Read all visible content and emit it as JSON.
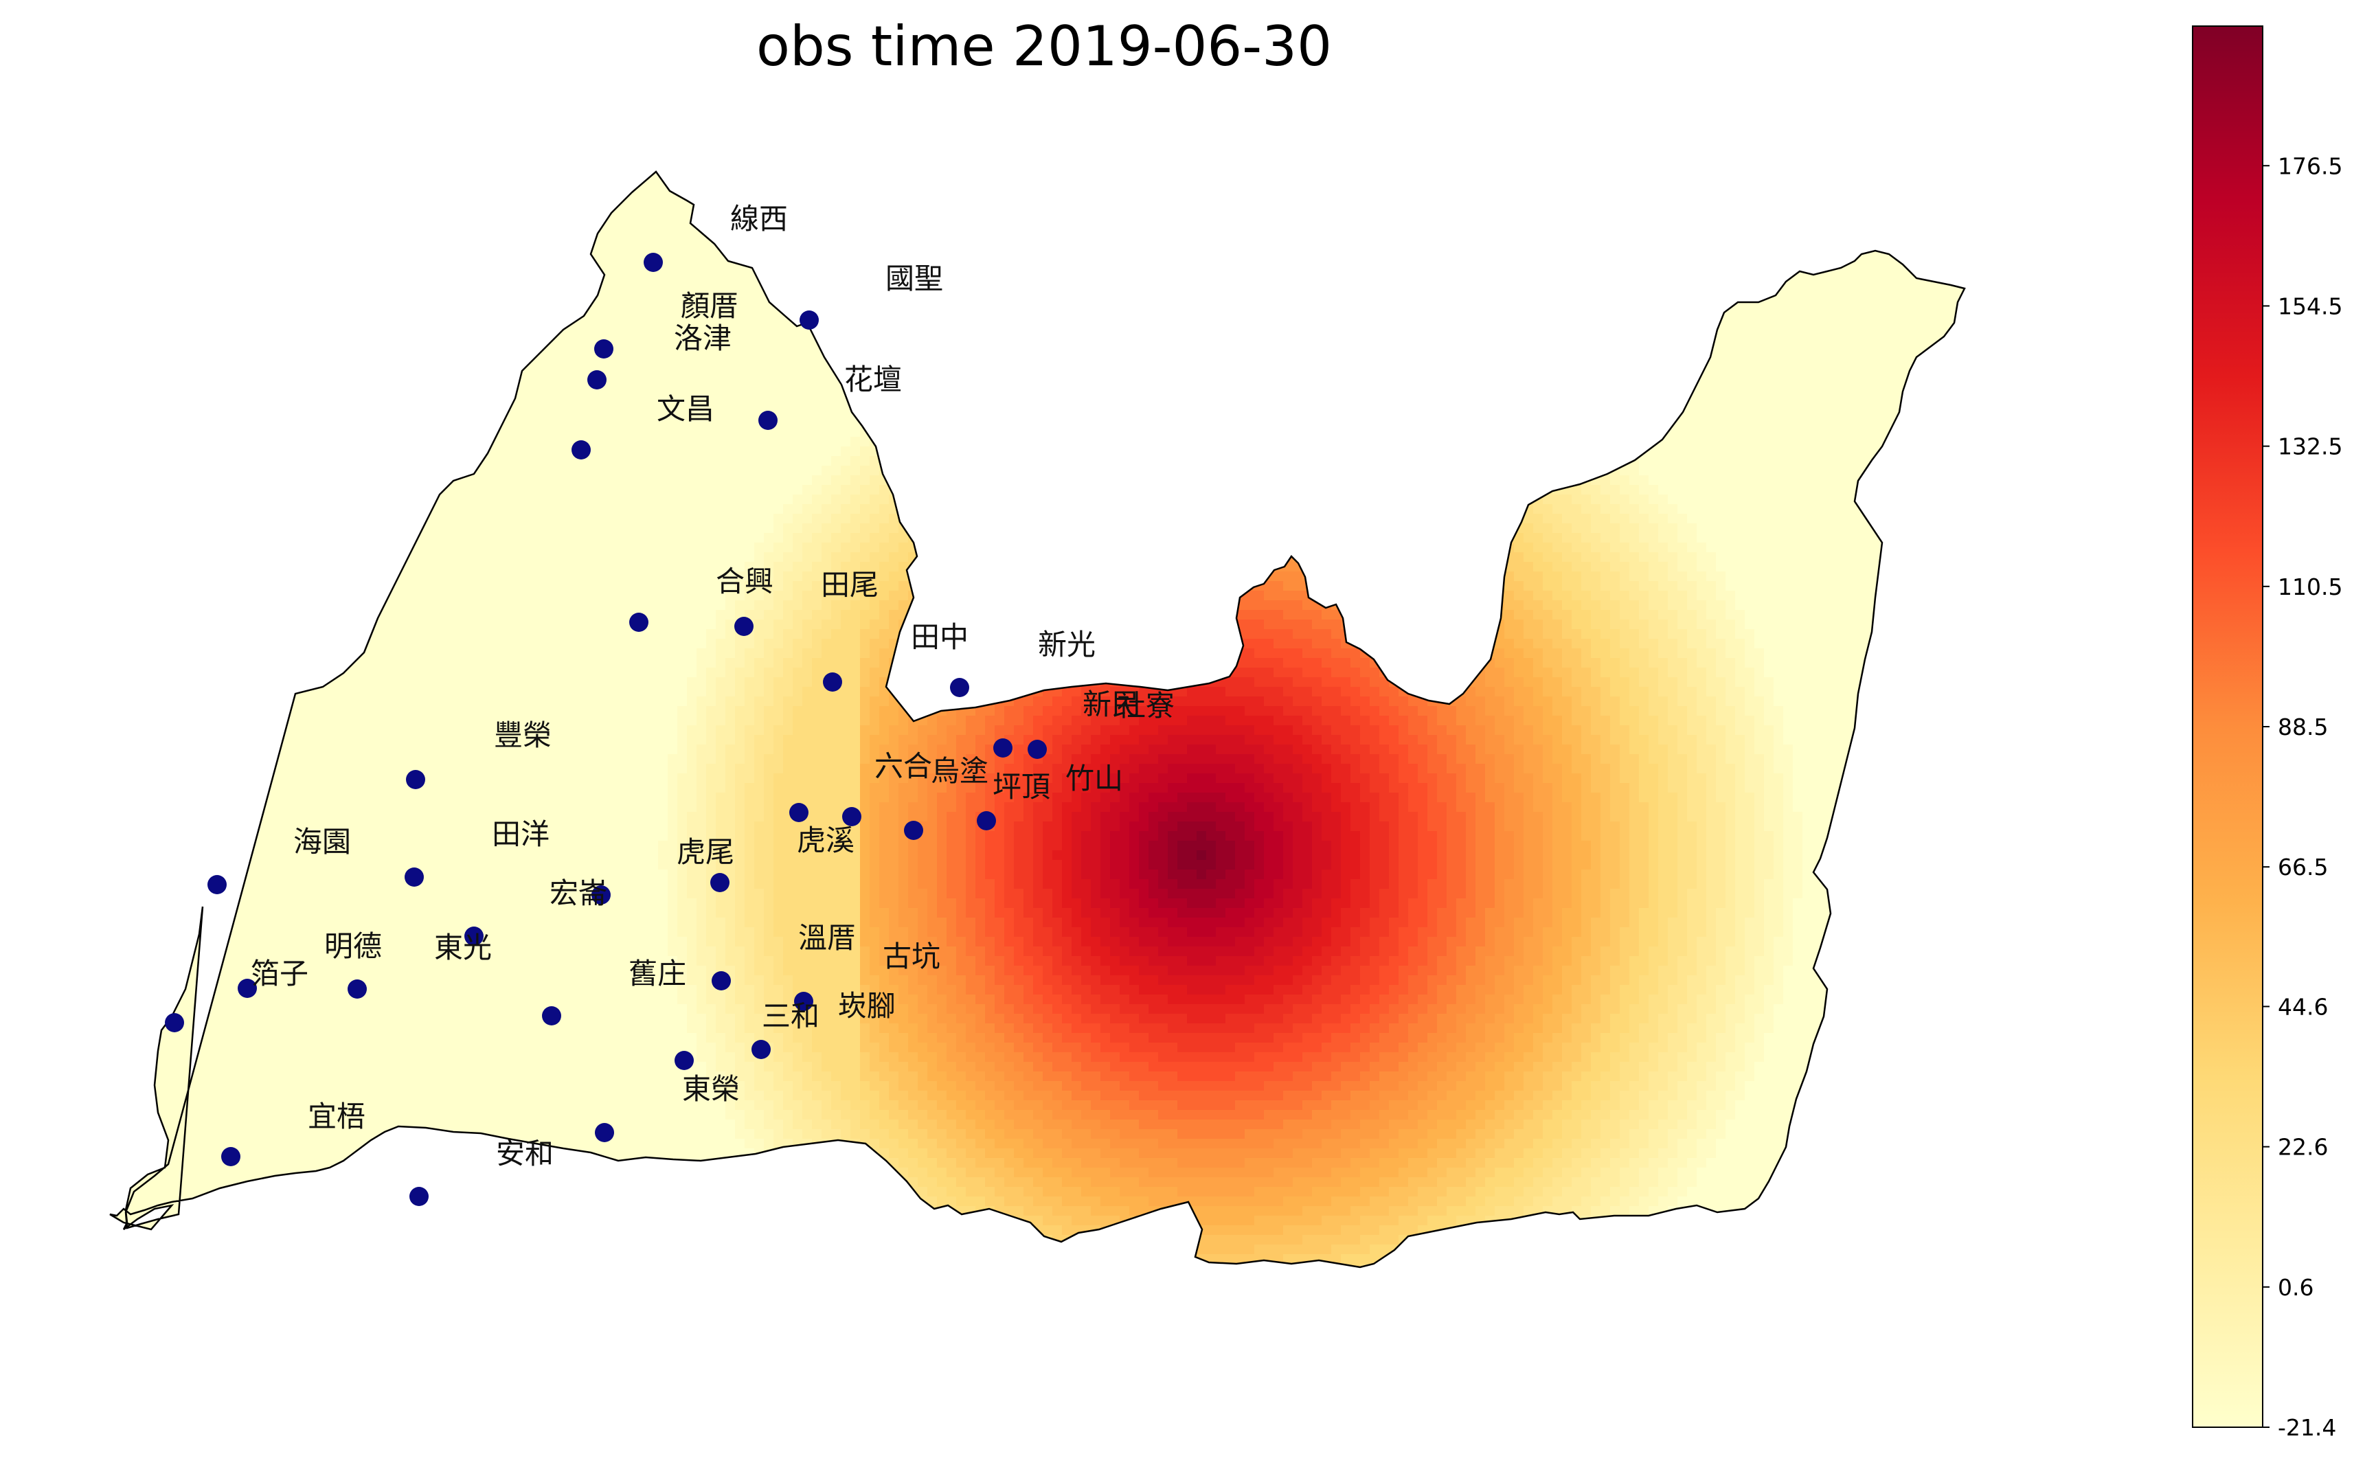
{
  "title": "obs time 2019-06-30",
  "colormap": {
    "name": "YlOrRd",
    "stops": [
      "#ffffcc",
      "#ffeda0",
      "#fed976",
      "#feb24c",
      "#fd8d3c",
      "#fc4e2a",
      "#e31a1c",
      "#bd0026",
      "#800026"
    ]
  },
  "colorbar": {
    "min": -21.4,
    "max": 198.4,
    "ticks": [
      "176.5",
      "154.5",
      "132.5",
      "110.5",
      "88.5",
      "66.5",
      "44.6",
      "22.6",
      "0.6",
      "-21.4"
    ]
  },
  "station_marker_color": "#0a0a82",
  "station_labels": [
    "線西",
    "國聖",
    "顏厝",
    "洛津",
    "花壇",
    "文昌",
    "合興",
    "田尾",
    "田中",
    "新光",
    "新民",
    "社寮",
    "豐榮",
    "六合",
    "烏塗",
    "竹山",
    "坪頂",
    "海園",
    "田洋",
    "虎尾",
    "虎溪",
    "宏崙",
    "明德",
    "東光",
    "溫厝",
    "古坑",
    "箔子",
    "舊庄",
    "崁腳",
    "三和",
    "宜梧",
    "東榮",
    "安和"
  ]
}
